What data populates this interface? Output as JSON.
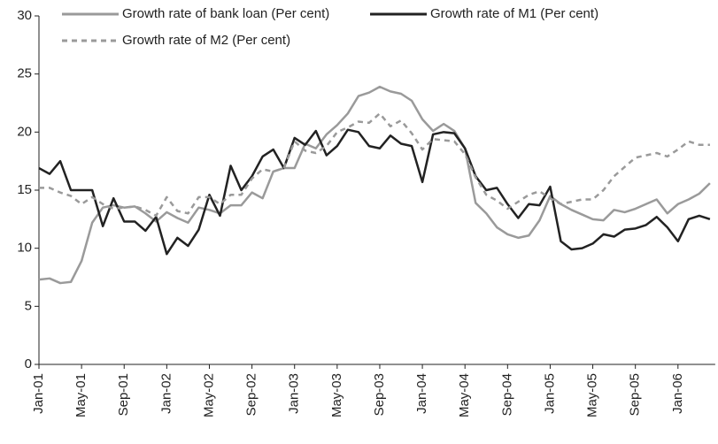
{
  "chart_data": {
    "type": "line",
    "categories": [
      "Jan-01",
      null,
      null,
      null,
      "May-01",
      null,
      null,
      null,
      "Sep-01",
      null,
      null,
      null,
      "Jan-02",
      null,
      null,
      null,
      "May-02",
      null,
      null,
      null,
      "Sep-02",
      null,
      null,
      null,
      "Jan-03",
      null,
      null,
      null,
      "May-03",
      null,
      null,
      null,
      "Sep-03",
      null,
      null,
      null,
      "Jan-04",
      null,
      null,
      null,
      "May-04",
      null,
      null,
      null,
      "Sep-04",
      null,
      null,
      null,
      "Jan-05",
      null,
      null,
      null,
      "May-05",
      null,
      null,
      null,
      "Sep-05",
      null,
      null,
      null,
      "Jan-06",
      null,
      null,
      null
    ],
    "series": [
      {
        "name": "Growth rate of bank loan (Per cent)",
        "color": "#9a9a9a",
        "dash": false,
        "values": [
          7.3,
          7.4,
          7.0,
          7.1,
          8.9,
          12.2,
          13.5,
          13.7,
          13.5,
          13.6,
          13.0,
          12.3,
          13.1,
          12.6,
          12.2,
          13.5,
          13.3,
          13.0,
          13.7,
          13.7,
          14.8,
          14.3,
          16.6,
          16.9,
          16.9,
          19.0,
          18.6,
          19.8,
          20.6,
          21.6,
          23.1,
          23.4,
          23.9,
          23.5,
          23.3,
          22.7,
          21.1,
          20.1,
          20.7,
          20.1,
          18.6,
          13.9,
          13.0,
          11.8,
          11.2,
          10.9,
          11.1,
          12.4,
          14.5,
          13.8,
          13.3,
          12.9,
          12.5,
          12.4,
          13.3,
          13.1,
          13.4,
          13.8,
          14.2,
          13.0,
          13.8,
          14.2,
          14.7,
          15.6
        ]
      },
      {
        "name": "Growth rate of M1 (Per cent)",
        "color": "#222222",
        "dash": false,
        "values": [
          16.9,
          16.4,
          17.5,
          15.0,
          15.0,
          15.0,
          11.9,
          14.3,
          12.3,
          12.3,
          11.5,
          12.7,
          9.5,
          10.9,
          10.2,
          11.6,
          14.6,
          12.8,
          17.1,
          15.0,
          16.2,
          17.9,
          18.5,
          16.9,
          19.5,
          18.9,
          20.1,
          18.0,
          18.8,
          20.2,
          20.0,
          18.8,
          18.6,
          19.7,
          19.0,
          18.8,
          15.7,
          19.8,
          20.0,
          19.9,
          18.6,
          16.2,
          15.0,
          15.2,
          13.8,
          12.6,
          13.8,
          13.7,
          15.3,
          10.6,
          9.9,
          10.0,
          10.4,
          11.2,
          11.0,
          11.6,
          11.7,
          12.0,
          12.7,
          11.8,
          10.6,
          12.5,
          12.8,
          12.5
        ]
      },
      {
        "name": "Growth rate of M2 (Per cent)",
        "color": "#9a9a9a",
        "dash": true,
        "values": [
          15.2,
          15.2,
          14.8,
          14.5,
          13.8,
          14.4,
          13.8,
          13.4,
          13.5,
          13.6,
          13.3,
          12.8,
          14.4,
          13.2,
          13.0,
          14.4,
          14.4,
          13.8,
          14.6,
          14.6,
          16.0,
          16.8,
          16.6,
          16.9,
          19.2,
          18.4,
          18.2,
          18.8,
          20.0,
          20.4,
          20.9,
          20.8,
          21.6,
          20.5,
          21.0,
          19.9,
          18.5,
          19.4,
          19.3,
          19.2,
          18.1,
          16.1,
          14.6,
          14.1,
          13.4,
          14.0,
          14.6,
          14.9,
          14.3,
          13.8,
          14.0,
          14.2,
          14.2,
          15.0,
          16.2,
          17.0,
          17.8,
          18.0,
          18.2,
          17.9,
          18.5,
          19.2,
          18.9,
          18.9
        ]
      }
    ],
    "ylim": [
      0,
      30
    ],
    "yticks": [
      0,
      5,
      10,
      15,
      20,
      25,
      30
    ],
    "grid": false
  }
}
